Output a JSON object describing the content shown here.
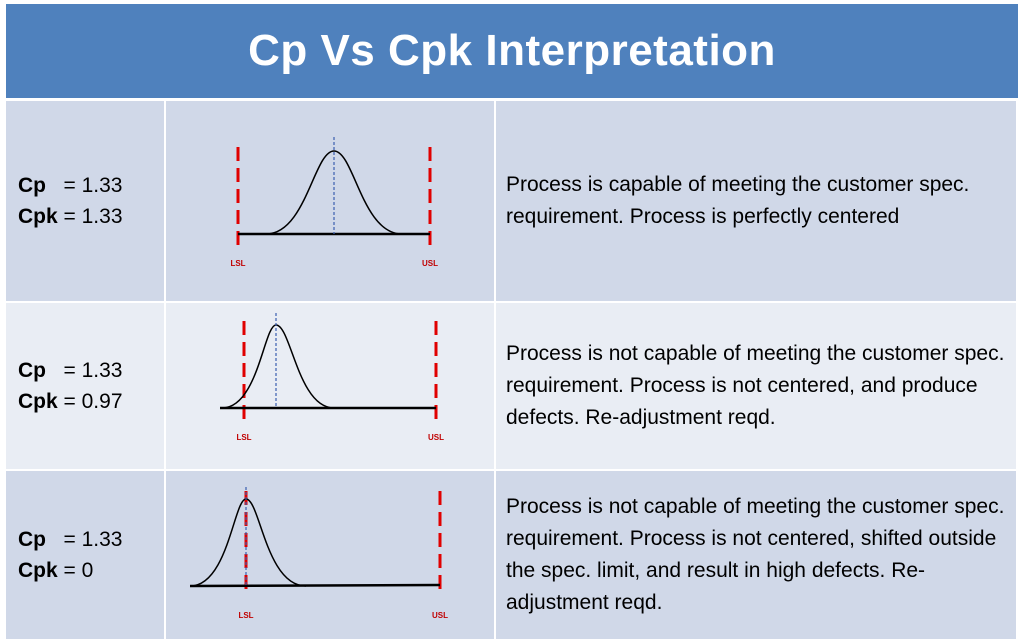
{
  "title": "Cp Vs Cpk Interpretation",
  "colors": {
    "header": "#4f81bd",
    "row_dark": "#d0d8e8",
    "row_light": "#e9edf4",
    "spec_limit": "#e00000",
    "center_line": "#3a5fb0"
  },
  "rows": [
    {
      "cp_label": "Cp",
      "cp_value": "= 1.33",
      "cpk_label": "Cpk",
      "cpk_value": "= 1.33",
      "lsl_label": "LSL",
      "usl_label": "USL",
      "description": "Process is capable of meeting the customer spec. requirement. Process is perfectly centered"
    },
    {
      "cp_label": "Cp",
      "cp_value": "= 1.33",
      "cpk_label": "Cpk",
      "cpk_value": "= 0.97",
      "lsl_label": "LSL",
      "usl_label": "USL",
      "description": "Process is not capable of meeting the customer spec. requirement. Process is not centered, and produce  defects. Re-adjustment reqd."
    },
    {
      "cp_label": "Cp",
      "cp_value": "= 1.33",
      "cpk_label": "Cpk",
      "cpk_value": "= 0",
      "lsl_label": "LSL",
      "usl_label": "USL",
      "description": "Process is not capable of meeting the customer spec. requirement. Process is not centered, shifted outside the spec. limit, and result in high defects. Re-adjustment reqd."
    }
  ]
}
